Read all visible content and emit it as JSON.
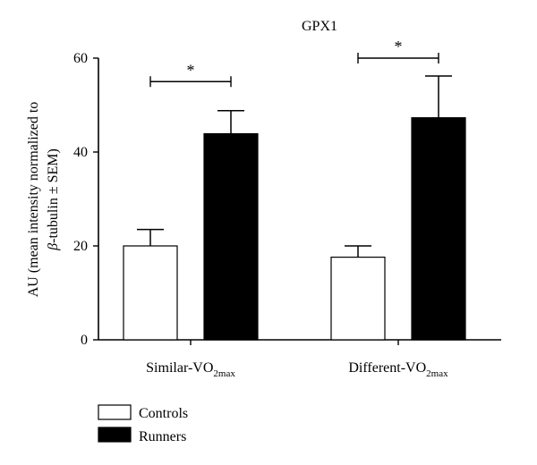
{
  "chart_data": {
    "type": "bar",
    "title": "GPX1",
    "ylabel_line1": "AU (mean intensity normalized to",
    "ylabel_line2_symbol": "β",
    "ylabel_line2_rest": "-tubulin ± SEM)",
    "ylim": [
      0,
      60
    ],
    "yticks": [
      "0",
      "20",
      "40",
      "60"
    ],
    "grid": false,
    "legend_position": "bottom-left",
    "categories": [
      {
        "prefix": "Similar-VO",
        "subscript": "2max"
      },
      {
        "prefix": "Different-VO",
        "subscript": "2max"
      }
    ],
    "series": [
      {
        "name": "Controls",
        "fill": "#ffffff",
        "values": [
          20.0,
          17.6
        ],
        "errors": [
          3.5,
          2.4
        ]
      },
      {
        "name": "Runners",
        "fill": "#000000",
        "values": [
          43.9,
          47.3
        ],
        "errors": [
          4.9,
          8.9
        ]
      }
    ],
    "significance": [
      {
        "category": 0,
        "label": "*",
        "level": 55.0
      },
      {
        "category": 1,
        "label": "*",
        "level": 60.0
      }
    ]
  }
}
